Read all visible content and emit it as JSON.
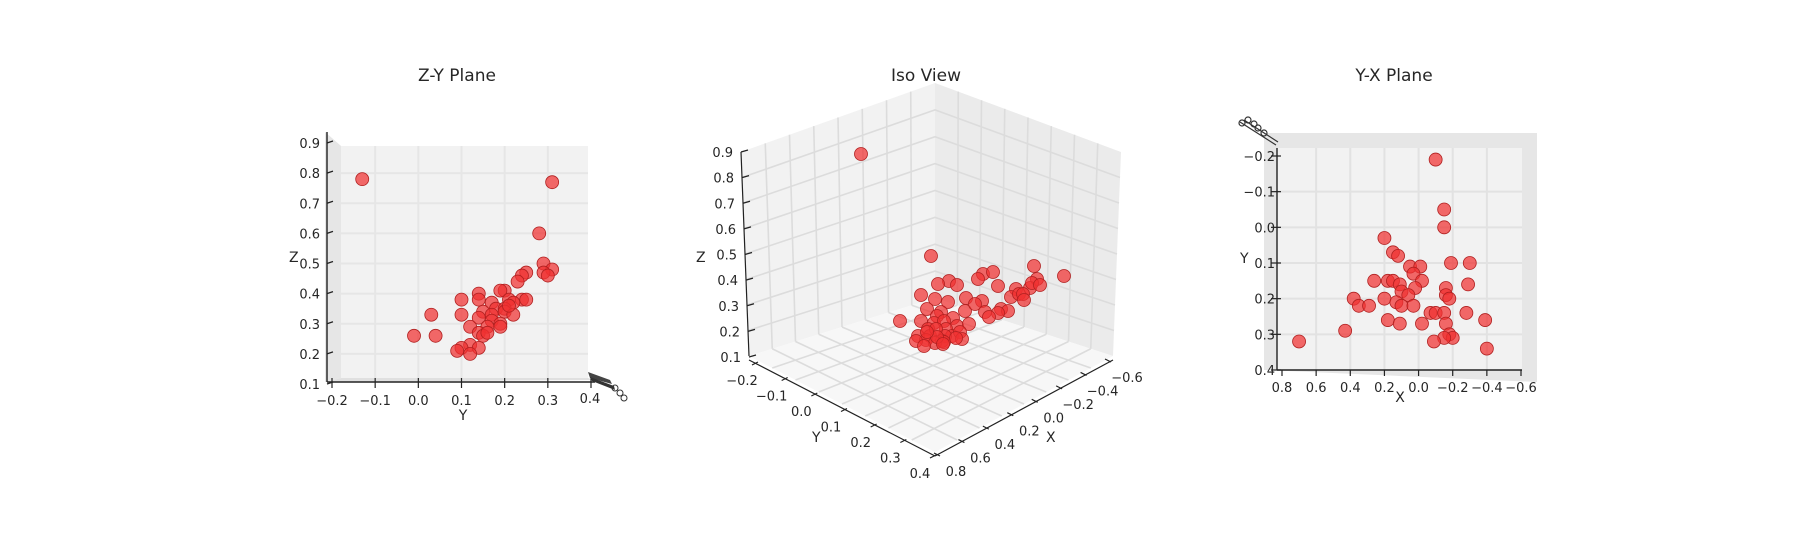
{
  "chart_data": [
    {
      "type": "scatter",
      "title": "Z-Y Plane",
      "xlabel": "Y",
      "ylabel": "Z",
      "x_ticks": [
        "−0.2",
        "−0.1",
        "0.0",
        "0.1",
        "0.2",
        "0.3",
        "0.4"
      ],
      "y_ticks": [
        "0.1",
        "0.2",
        "0.3",
        "0.4",
        "0.5",
        "0.6",
        "0.7",
        "0.8",
        "0.9"
      ],
      "xlim": [
        -0.2,
        0.4
      ],
      "ylim": [
        0.1,
        0.9
      ],
      "grid": true,
      "marker_color": "#f03030",
      "points": [
        {
          "x": -0.13,
          "y": 0.78
        },
        {
          "x": 0.31,
          "y": 0.77
        },
        {
          "x": 0.28,
          "y": 0.6
        },
        {
          "x": 0.29,
          "y": 0.5
        },
        {
          "x": 0.31,
          "y": 0.48
        },
        {
          "x": 0.29,
          "y": 0.47
        },
        {
          "x": 0.3,
          "y": 0.46
        },
        {
          "x": 0.25,
          "y": 0.47
        },
        {
          "x": 0.24,
          "y": 0.46
        },
        {
          "x": 0.23,
          "y": 0.44
        },
        {
          "x": 0.2,
          "y": 0.41
        },
        {
          "x": 0.19,
          "y": 0.41
        },
        {
          "x": 0.14,
          "y": 0.4
        },
        {
          "x": 0.1,
          "y": 0.38
        },
        {
          "x": 0.14,
          "y": 0.38
        },
        {
          "x": 0.21,
          "y": 0.38
        },
        {
          "x": 0.24,
          "y": 0.38
        },
        {
          "x": 0.25,
          "y": 0.38
        },
        {
          "x": 0.17,
          "y": 0.37
        },
        {
          "x": 0.22,
          "y": 0.37
        },
        {
          "x": 0.18,
          "y": 0.35
        },
        {
          "x": 0.2,
          "y": 0.35
        },
        {
          "x": 0.15,
          "y": 0.34
        },
        {
          "x": 0.17,
          "y": 0.33
        },
        {
          "x": 0.2,
          "y": 0.34
        },
        {
          "x": 0.22,
          "y": 0.33
        },
        {
          "x": 0.03,
          "y": 0.33
        },
        {
          "x": 0.1,
          "y": 0.33
        },
        {
          "x": 0.14,
          "y": 0.32
        },
        {
          "x": 0.17,
          "y": 0.31
        },
        {
          "x": 0.19,
          "y": 0.3
        },
        {
          "x": 0.12,
          "y": 0.29
        },
        {
          "x": 0.16,
          "y": 0.29
        },
        {
          "x": 0.19,
          "y": 0.29
        },
        {
          "x": 0.14,
          "y": 0.27
        },
        {
          "x": 0.15,
          "y": 0.26
        },
        {
          "x": 0.16,
          "y": 0.27
        },
        {
          "x": -0.01,
          "y": 0.26
        },
        {
          "x": 0.04,
          "y": 0.26
        },
        {
          "x": 0.12,
          "y": 0.23
        },
        {
          "x": 0.1,
          "y": 0.22
        },
        {
          "x": 0.14,
          "y": 0.22
        },
        {
          "x": 0.09,
          "y": 0.21
        },
        {
          "x": 0.12,
          "y": 0.2
        },
        {
          "x": 0.21,
          "y": 0.36
        }
      ]
    },
    {
      "type": "scatter",
      "title": "Iso View",
      "xlabel": "X",
      "ylabel": "Y",
      "zlabel": "Z",
      "x_ticks": [
        "−0.6",
        "−0.4",
        "−0.2",
        "0.0",
        "0.2",
        "0.4",
        "0.6",
        "0.8"
      ],
      "y_ticks": [
        "−0.2",
        "−0.1",
        "0.0",
        "0.1",
        "0.2",
        "0.3",
        "0.4"
      ],
      "z_ticks": [
        "0.1",
        "0.2",
        "0.3",
        "0.4",
        "0.5",
        "0.6",
        "0.7",
        "0.8",
        "0.9"
      ],
      "grid": true,
      "marker_color": "#f03030"
    },
    {
      "type": "scatter",
      "title": "Y-X Plane",
      "xlabel": "X",
      "ylabel": "Y",
      "x_ticks": [
        "0.8",
        "0.6",
        "0.4",
        "0.2",
        "0.0",
        "−0.2",
        "−0.4",
        "−0.6"
      ],
      "y_ticks": [
        "−0.2",
        "−0.1",
        "0.0",
        "0.1",
        "0.2",
        "0.3",
        "0.4"
      ],
      "xlim": [
        0.8,
        -0.6
      ],
      "ylim": [
        -0.2,
        0.4
      ],
      "grid": true,
      "marker_color": "#f03030",
      "points": [
        {
          "x": -0.1,
          "y": -0.19
        },
        {
          "x": -0.15,
          "y": -0.05
        },
        {
          "x": -0.15,
          "y": 0.0
        },
        {
          "x": 0.2,
          "y": 0.03
        },
        {
          "x": 0.15,
          "y": 0.07
        },
        {
          "x": 0.12,
          "y": 0.08
        },
        {
          "x": -0.3,
          "y": 0.1
        },
        {
          "x": -0.19,
          "y": 0.1
        },
        {
          "x": 0.05,
          "y": 0.11
        },
        {
          "x": -0.01,
          "y": 0.11
        },
        {
          "x": 0.03,
          "y": 0.13
        },
        {
          "x": 0.26,
          "y": 0.15
        },
        {
          "x": 0.18,
          "y": 0.15
        },
        {
          "x": 0.15,
          "y": 0.15
        },
        {
          "x": 0.11,
          "y": 0.16
        },
        {
          "x": -0.02,
          "y": 0.15
        },
        {
          "x": -0.16,
          "y": 0.17
        },
        {
          "x": -0.29,
          "y": 0.16
        },
        {
          "x": 0.02,
          "y": 0.17
        },
        {
          "x": 0.1,
          "y": 0.18
        },
        {
          "x": 0.06,
          "y": 0.19
        },
        {
          "x": -0.16,
          "y": 0.19
        },
        {
          "x": -0.18,
          "y": 0.2
        },
        {
          "x": 0.38,
          "y": 0.2
        },
        {
          "x": 0.2,
          "y": 0.2
        },
        {
          "x": 0.13,
          "y": 0.21
        },
        {
          "x": 0.35,
          "y": 0.22
        },
        {
          "x": 0.29,
          "y": 0.22
        },
        {
          "x": 0.1,
          "y": 0.22
        },
        {
          "x": 0.03,
          "y": 0.22
        },
        {
          "x": -0.07,
          "y": 0.24
        },
        {
          "x": -0.1,
          "y": 0.24
        },
        {
          "x": -0.15,
          "y": 0.24
        },
        {
          "x": -0.28,
          "y": 0.24
        },
        {
          "x": 0.18,
          "y": 0.26
        },
        {
          "x": 0.11,
          "y": 0.27
        },
        {
          "x": -0.02,
          "y": 0.27
        },
        {
          "x": -0.16,
          "y": 0.27
        },
        {
          "x": -0.39,
          "y": 0.26
        },
        {
          "x": 0.43,
          "y": 0.29
        },
        {
          "x": 0.7,
          "y": 0.32
        },
        {
          "x": -0.18,
          "y": 0.3
        },
        {
          "x": -0.2,
          "y": 0.31
        },
        {
          "x": -0.15,
          "y": 0.31
        },
        {
          "x": -0.09,
          "y": 0.32
        },
        {
          "x": -0.4,
          "y": 0.34
        }
      ]
    }
  ]
}
